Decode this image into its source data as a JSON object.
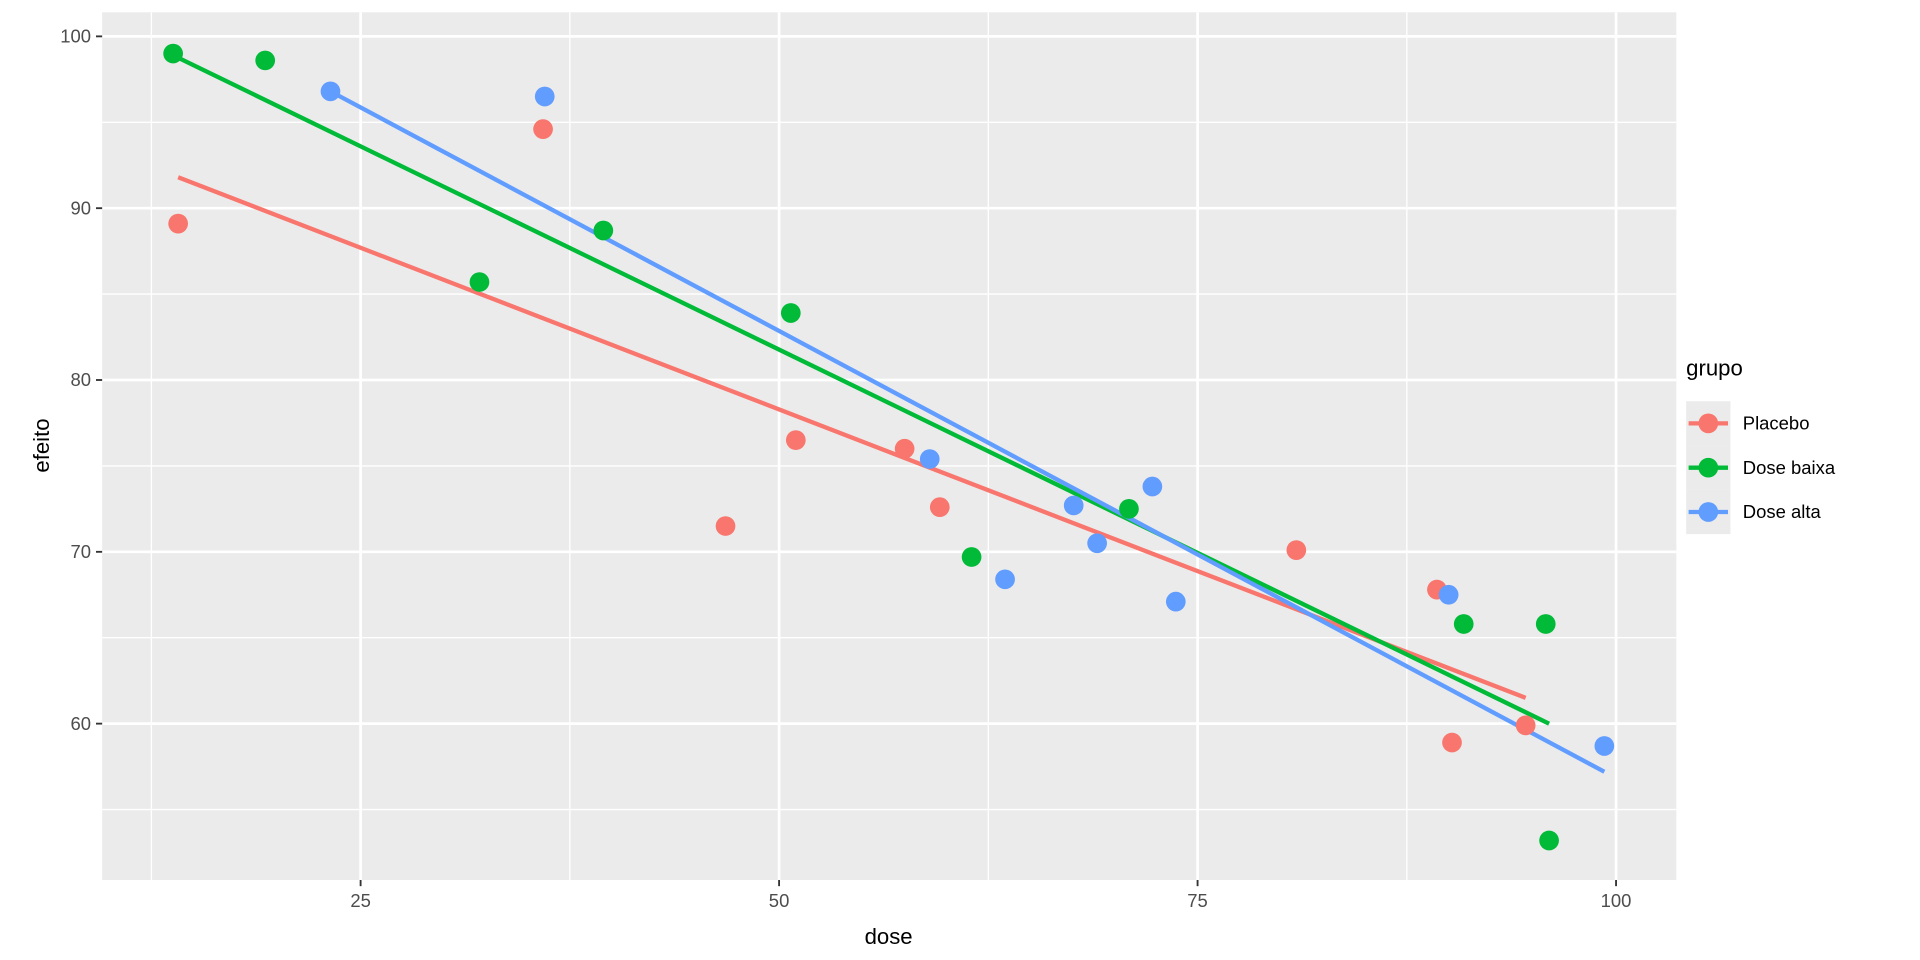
{
  "chart_data": {
    "type": "scatter",
    "title": "",
    "xlabel": "dose",
    "ylabel": "efeito",
    "xlim": [
      9.56,
      103.6
    ],
    "ylim": [
      50.9,
      101.4
    ],
    "x_ticks": [
      25,
      50,
      75,
      100
    ],
    "y_ticks": [
      60,
      70,
      80,
      90,
      100
    ],
    "x_tick_labels": [
      "25",
      "50",
      "75",
      "100"
    ],
    "y_tick_labels": [
      "60",
      "70",
      "80",
      "90",
      "100"
    ],
    "grid": true,
    "legend": {
      "title": "grupo",
      "placement": "right"
    },
    "series": [
      {
        "name": "Placebo",
        "color": "#F8766D",
        "points": [
          [
            14.1,
            89.1
          ],
          [
            35.9,
            94.6
          ],
          [
            46.8,
            71.5
          ],
          [
            51.0,
            76.5
          ],
          [
            57.5,
            76.0
          ],
          [
            59.6,
            72.6
          ],
          [
            80.9,
            70.1
          ],
          [
            89.3,
            67.8
          ],
          [
            90.2,
            58.9
          ],
          [
            94.6,
            59.9
          ]
        ],
        "fit": [
          [
            14.1,
            91.8
          ],
          [
            94.6,
            61.5
          ]
        ]
      },
      {
        "name": "Dose baixa",
        "color": "#00BA38",
        "points": [
          [
            13.8,
            99.0
          ],
          [
            19.3,
            98.6
          ],
          [
            32.1,
            85.7
          ],
          [
            39.5,
            88.7
          ],
          [
            50.7,
            83.9
          ],
          [
            61.5,
            69.7
          ],
          [
            70.9,
            72.5
          ],
          [
            90.9,
            65.8
          ],
          [
            95.8,
            65.8
          ],
          [
            96.0,
            53.2
          ]
        ],
        "fit": [
          [
            13.8,
            98.9
          ],
          [
            96.0,
            60.0
          ]
        ]
      },
      {
        "name": "Dose alta",
        "color": "#619CFF",
        "points": [
          [
            23.2,
            96.8
          ],
          [
            36.0,
            96.5
          ],
          [
            59.0,
            75.4
          ],
          [
            63.5,
            68.4
          ],
          [
            67.6,
            72.7
          ],
          [
            69.0,
            70.5
          ],
          [
            72.3,
            73.8
          ],
          [
            73.7,
            67.1
          ],
          [
            90.0,
            67.5
          ],
          [
            99.3,
            58.7
          ]
        ],
        "fit": [
          [
            23.2,
            96.8
          ],
          [
            99.3,
            57.2
          ]
        ]
      }
    ]
  }
}
